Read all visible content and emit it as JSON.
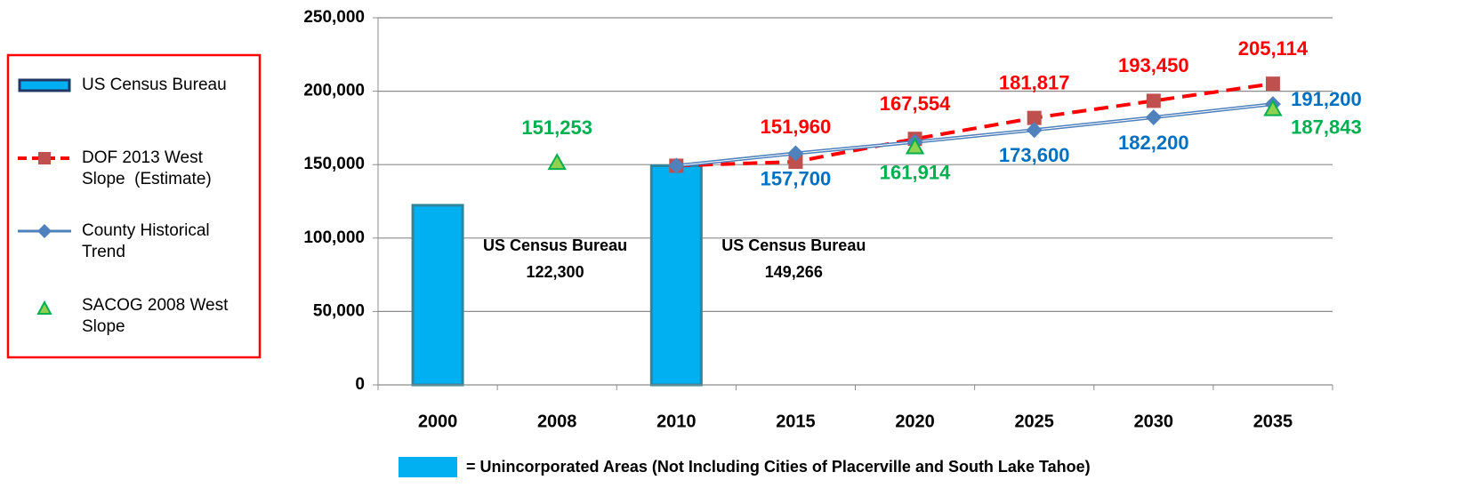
{
  "chart_data": {
    "type": "bar",
    "categories": [
      "2000",
      "2008",
      "2010",
      "2015",
      "2020",
      "2025",
      "2030",
      "2035"
    ],
    "series": [
      {
        "name": "US Census Bureau",
        "type": "bar",
        "color": "#00b0f0",
        "edge": "#31849b",
        "values": [
          122300,
          null,
          149266,
          null,
          null,
          null,
          null,
          null
        ],
        "value_labels": [
          "122,300",
          null,
          "149,266",
          null,
          null,
          null,
          null,
          null
        ]
      },
      {
        "name": "DOF 2013 West Slope  (Estimate)",
        "type": "line",
        "color": "#ff0000",
        "marker_color": "#c0504d",
        "dashed": true,
        "values": [
          null,
          null,
          149266,
          151960,
          167554,
          181817,
          193450,
          205114
        ],
        "value_labels": [
          null,
          null,
          null,
          "151,960",
          "167,554",
          "181,817",
          "193,450",
          "205,114"
        ]
      },
      {
        "name": "County Historical Trend",
        "type": "line",
        "color": "#4f81bd",
        "label_color": "#0070c0",
        "values": [
          null,
          null,
          149266,
          157700,
          165400,
          173600,
          182200,
          191200
        ],
        "value_labels": [
          null,
          null,
          null,
          "157,700",
          null,
          "173,600",
          "182,200",
          "191,200"
        ]
      },
      {
        "name": "SACOG 2008 West Slope",
        "type": "scatter",
        "color": "#92d050",
        "edge": "#00b050",
        "label_color": "#00b050",
        "values": [
          null,
          151253,
          null,
          null,
          161914,
          null,
          null,
          187843
        ],
        "value_labels": [
          null,
          "151,253",
          null,
          null,
          "161,914",
          null,
          null,
          "187,843"
        ]
      }
    ],
    "ylim": [
      0,
      250000
    ],
    "yticks": [
      0,
      {
        "value": 50000,
        "label": "50,000"
      },
      {
        "value": 100000,
        "label": "100,000"
      },
      {
        "value": 150000,
        "label": "150,000"
      },
      {
        "value": 200000,
        "label": "200,000"
      },
      {
        "value": 250000,
        "label": "250,000"
      }
    ],
    "grid": true,
    "legend": "left",
    "footnote": "= Unincorporated Areas  (Not Including Cities of Placerville and South Lake Tahoe)"
  }
}
